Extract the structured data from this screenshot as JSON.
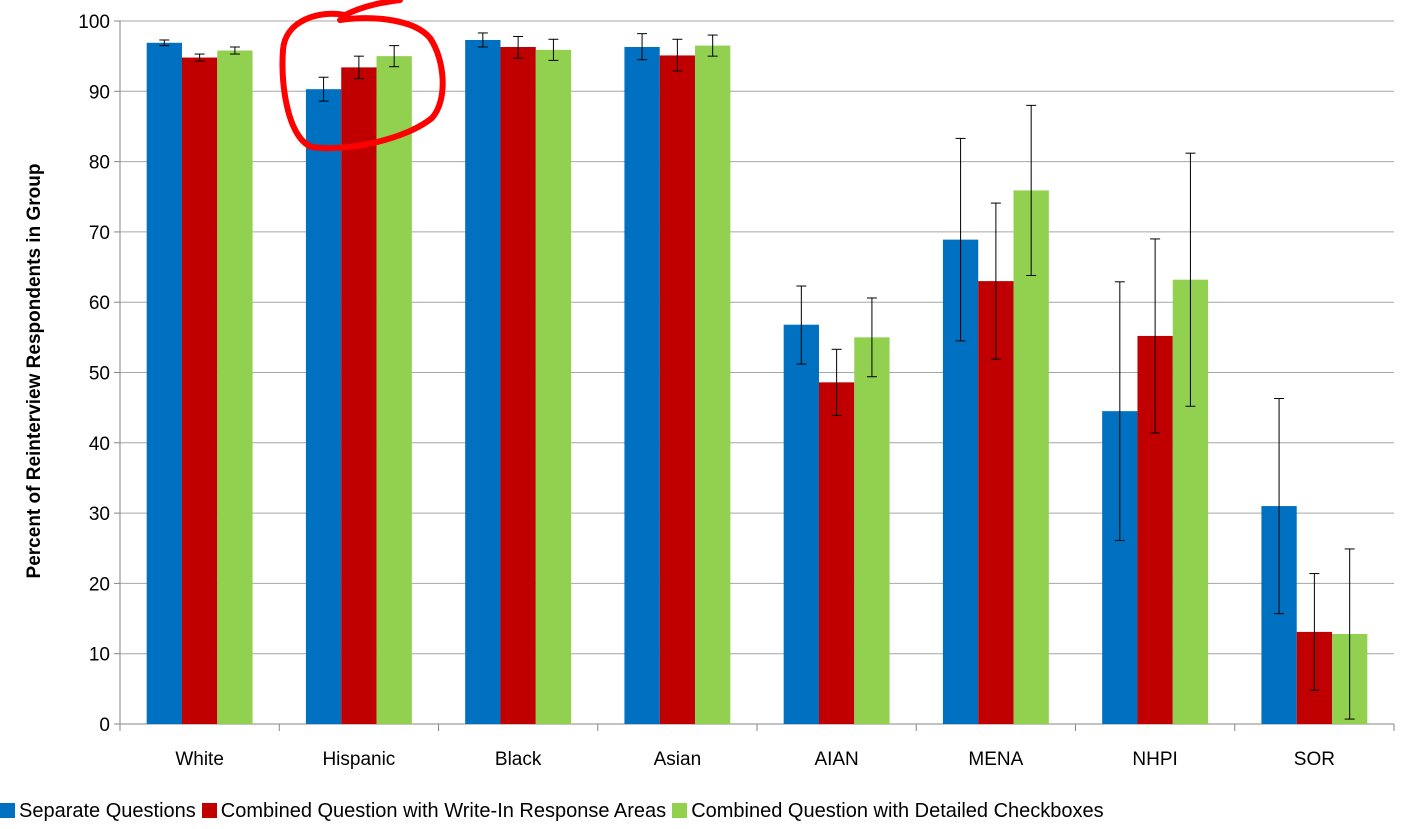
{
  "chart_data": {
    "type": "bar",
    "title": "",
    "xlabel": "",
    "ylabel": "Percent of Reinterview Respondents in Group",
    "ylim": [
      0,
      100
    ],
    "yticks": [
      0,
      10,
      20,
      30,
      40,
      50,
      60,
      70,
      80,
      90,
      100
    ],
    "grid": true,
    "legend_position": "bottom",
    "categories": [
      "White",
      "Hispanic",
      "Black",
      "Asian",
      "AIAN",
      "MENA",
      "NHPI",
      "SOR"
    ],
    "series": [
      {
        "name": "Separate Questions",
        "color": "#0070C0",
        "values": [
          96.9,
          90.3,
          97.3,
          96.3,
          56.8,
          68.9,
          44.5,
          31.0
        ],
        "error_low": [
          96.5,
          88.6,
          96.3,
          94.5,
          51.2,
          54.5,
          26.1,
          15.7
        ],
        "error_high": [
          97.3,
          92.0,
          98.3,
          98.2,
          62.3,
          83.3,
          62.9,
          46.3
        ]
      },
      {
        "name": "Combined Question with Write-In Response Areas",
        "color": "#C00000",
        "values": [
          94.8,
          93.4,
          96.3,
          95.1,
          48.6,
          63.0,
          55.2,
          13.1
        ],
        "error_low": [
          94.3,
          91.8,
          94.7,
          92.9,
          43.9,
          51.9,
          41.4,
          4.8
        ],
        "error_high": [
          95.3,
          95.0,
          97.8,
          97.4,
          53.3,
          74.1,
          69.0,
          21.4
        ]
      },
      {
        "name": "Combined Question with Detailed Checkboxes",
        "color": "#92D050",
        "values": [
          95.8,
          95.0,
          95.9,
          96.5,
          55.0,
          75.9,
          63.2,
          12.8
        ],
        "error_low": [
          95.3,
          93.5,
          94.4,
          95.0,
          49.4,
          63.8,
          45.2,
          0.7
        ],
        "error_high": [
          96.3,
          96.5,
          97.4,
          98.0,
          60.6,
          88.0,
          81.2,
          24.9
        ]
      }
    ]
  },
  "annotation": {
    "type": "hand-drawn circle",
    "target_category": "Hispanic",
    "color": "#FF0000"
  }
}
